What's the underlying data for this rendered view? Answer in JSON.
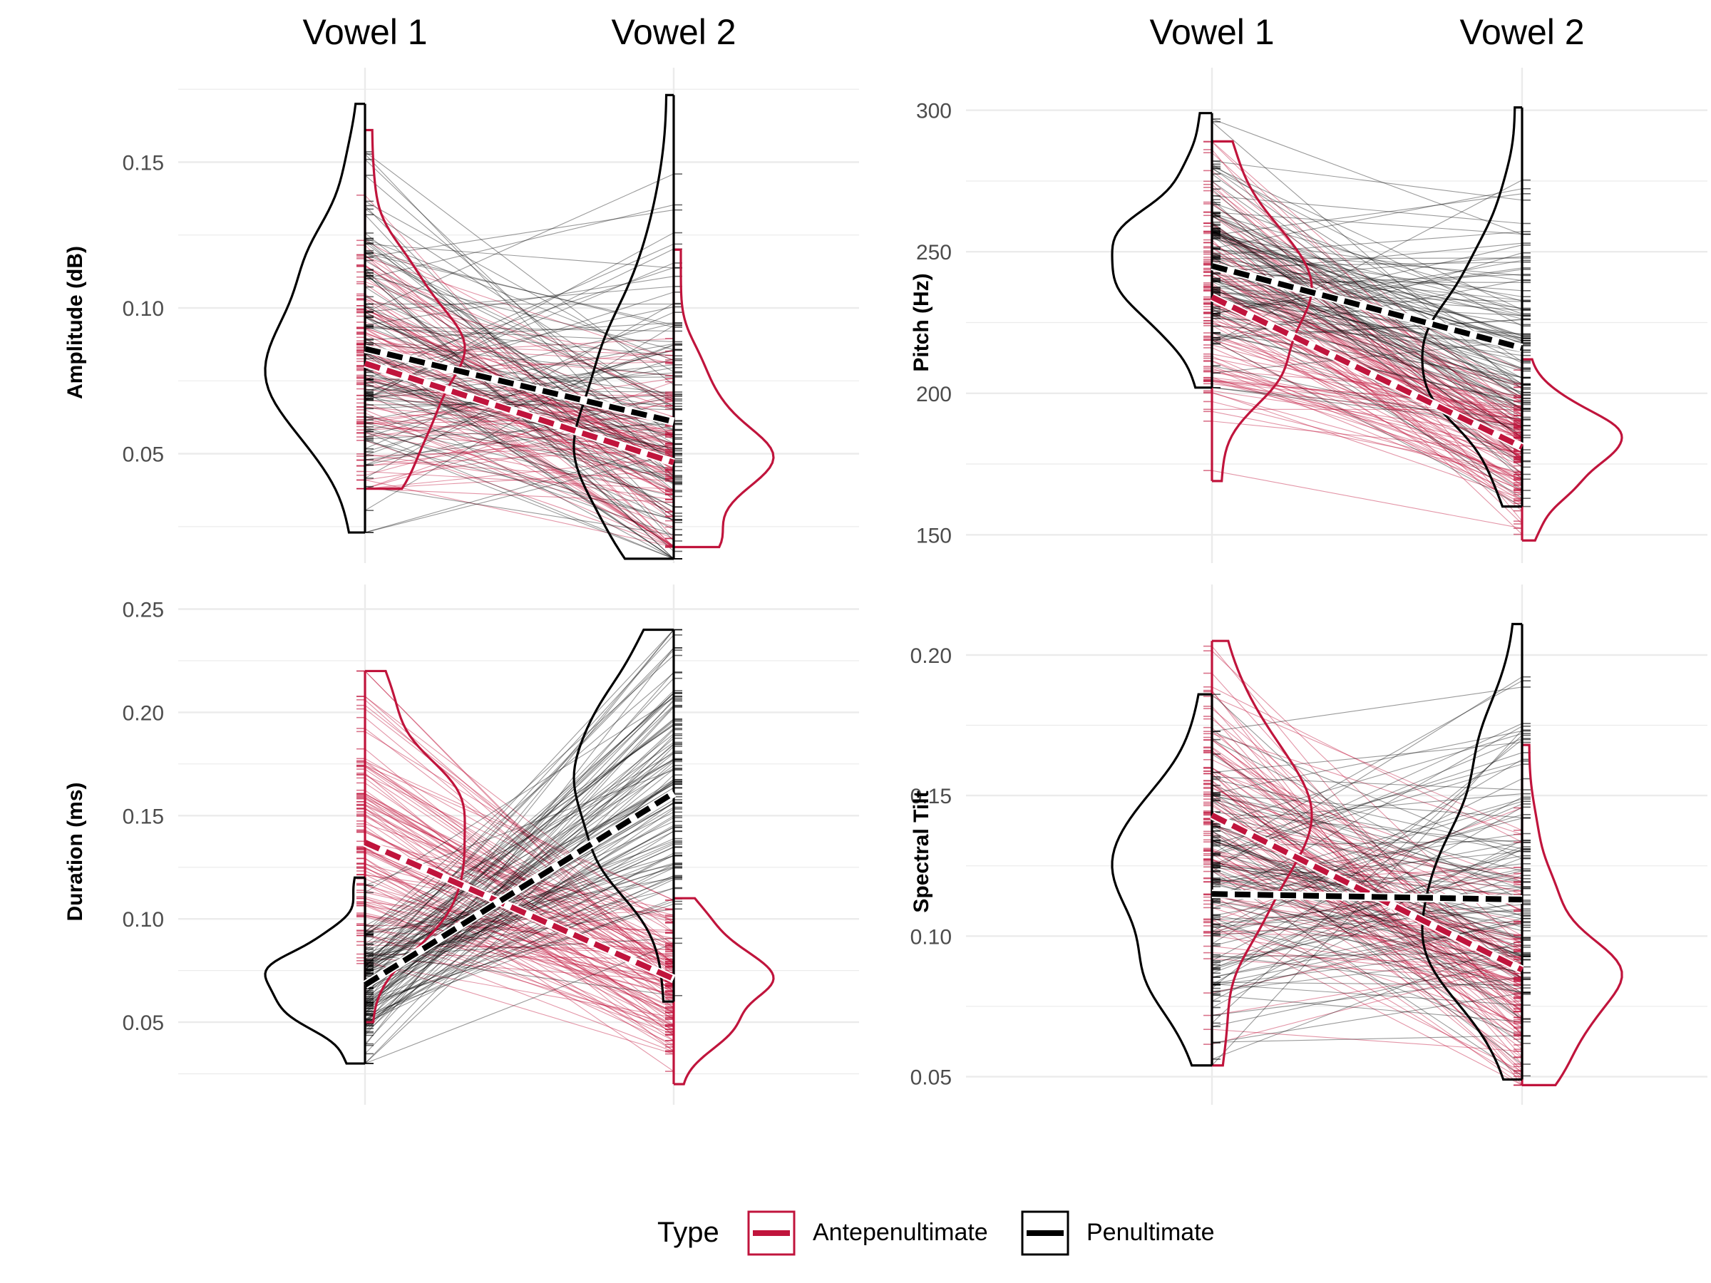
{
  "colors": {
    "antepenultimate": "#c0143c",
    "penultimate": "#000000",
    "grid": "#ebebeb",
    "tick_text": "#4d4d4d"
  },
  "legend": {
    "title": "Type",
    "items": [
      {
        "label": "Antepenultimate",
        "color": "#c0143c"
      },
      {
        "label": "Penultimate",
        "color": "#000000"
      }
    ]
  },
  "chart_data": [
    {
      "type": "line",
      "panel": "top-left",
      "ylabel": "Amplitude (dB)",
      "categories": [
        "Vowel 1",
        "Vowel 2"
      ],
      "ylim": [
        0.0125,
        0.1775
      ],
      "yticks": [
        0.05,
        0.1,
        0.15
      ],
      "ytick_labels": [
        "0.05",
        "0.10",
        "0.15"
      ],
      "series": [
        {
          "name": "Antepenultimate",
          "means": [
            0.081,
            0.047
          ],
          "v1_range": [
            0.038,
            0.161
          ],
          "v2_range": [
            0.018,
            0.12
          ]
        },
        {
          "name": "Penultimate",
          "means": [
            0.086,
            0.061
          ],
          "v1_range": [
            0.023,
            0.17
          ],
          "v2_range": [
            0.014,
            0.173
          ]
        }
      ]
    },
    {
      "type": "line",
      "panel": "top-right",
      "ylabel": "Pitch (Hz)",
      "categories": [
        "Vowel 1",
        "Vowel 2"
      ],
      "ylim": [
        140,
        310
      ],
      "yticks": [
        150,
        200,
        250,
        300
      ],
      "ytick_labels": [
        "150",
        "200",
        "250",
        "300"
      ],
      "series": [
        {
          "name": "Antepenultimate",
          "means": [
            234,
            181
          ],
          "v1_range": [
            169,
            289
          ],
          "v2_range": [
            148,
            212
          ]
        },
        {
          "name": "Penultimate",
          "means": [
            245,
            216
          ],
          "v1_range": [
            202,
            299
          ],
          "v2_range": [
            160,
            301
          ]
        }
      ]
    },
    {
      "type": "line",
      "panel": "bottom-left",
      "ylabel": "Duration (ms)",
      "categories": [
        "Vowel 1",
        "Vowel 2"
      ],
      "ylim": [
        0.01,
        0.255
      ],
      "yticks": [
        0.05,
        0.1,
        0.15,
        0.2,
        0.25
      ],
      "ytick_labels": [
        "0.05",
        "0.10",
        "0.15",
        "0.20",
        "0.25"
      ],
      "series": [
        {
          "name": "Antepenultimate",
          "means": [
            0.137,
            0.071
          ],
          "v1_range": [
            0.05,
            0.22
          ],
          "v2_range": [
            0.02,
            0.11
          ]
        },
        {
          "name": "Penultimate",
          "means": [
            0.068,
            0.161
          ],
          "v1_range": [
            0.03,
            0.12
          ],
          "v2_range": [
            0.06,
            0.24
          ]
        }
      ]
    },
    {
      "type": "line",
      "panel": "bottom-right",
      "ylabel": "Spectral Tilt",
      "categories": [
        "Vowel 1",
        "Vowel 2"
      ],
      "ylim": [
        0.04,
        0.22
      ],
      "yticks": [
        0.05,
        0.1,
        0.15,
        0.2
      ],
      "ytick_labels": [
        "0.05",
        "0.10",
        "0.15",
        "0.20"
      ],
      "series": [
        {
          "name": "Antepenultimate",
          "means": [
            0.143,
            0.088
          ],
          "v1_range": [
            0.054,
            0.205
          ],
          "v2_range": [
            0.047,
            0.168
          ]
        },
        {
          "name": "Penultimate",
          "means": [
            0.115,
            0.113
          ],
          "v1_range": [
            0.054,
            0.186
          ],
          "v2_range": [
            0.049,
            0.211
          ]
        }
      ]
    }
  ]
}
